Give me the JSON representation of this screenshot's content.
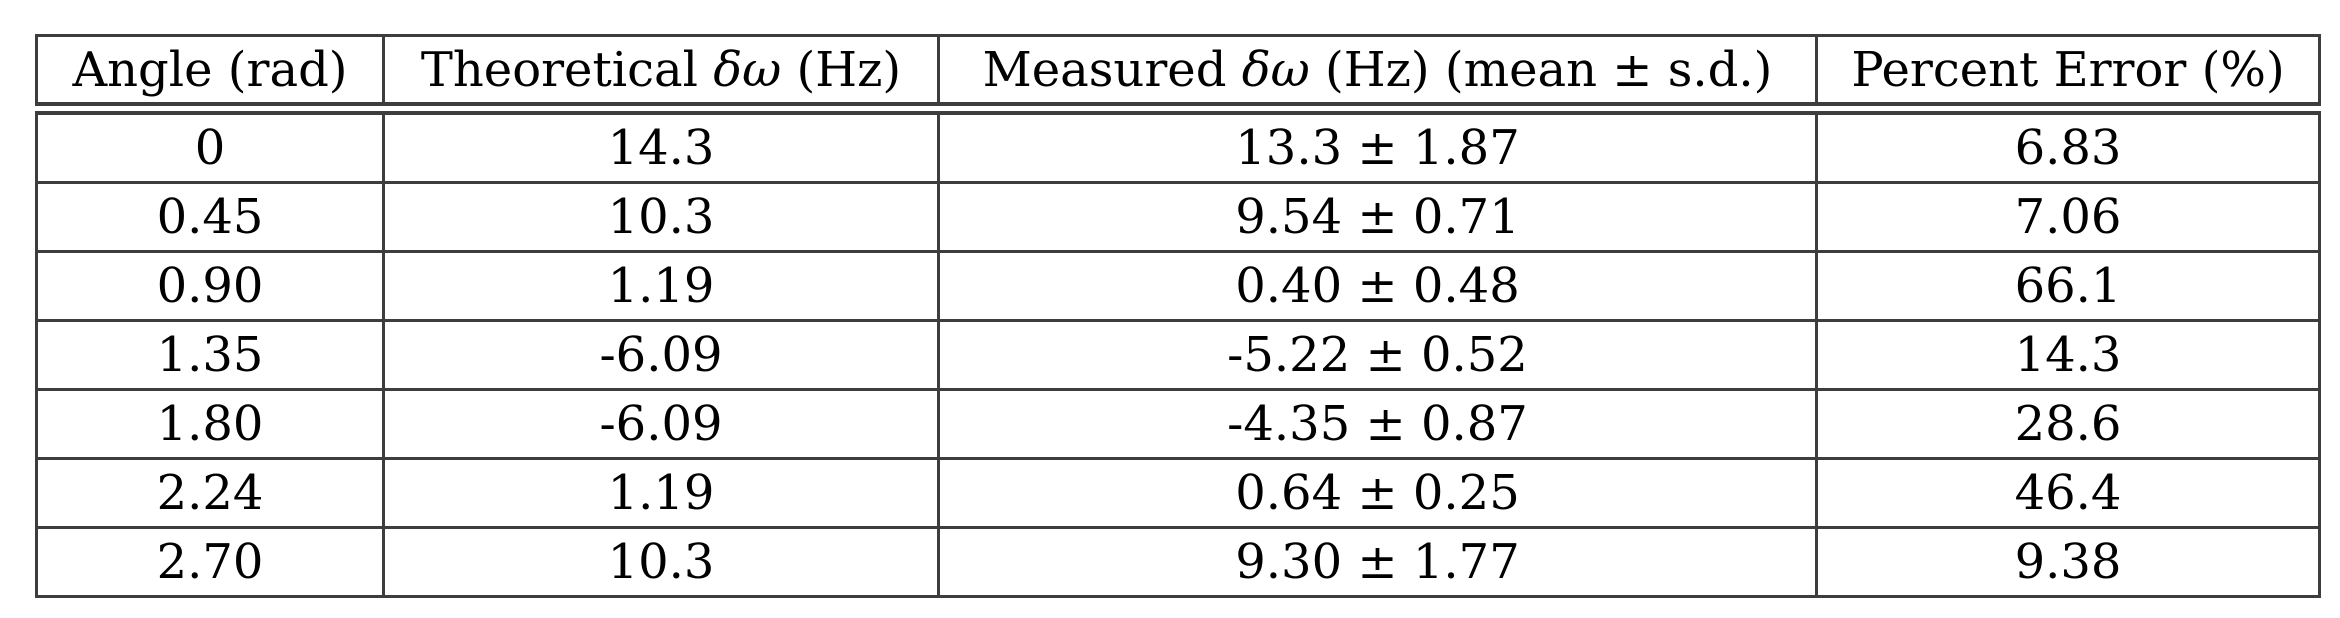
{
  "chart_data": {
    "type": "table",
    "title": "",
    "columns": [
      "Angle (rad)",
      "Theoretical δω (Hz)",
      "Measured δω (Hz) (mean ± s.d.)",
      "Percent Error (%)"
    ],
    "rows": [
      [
        "0",
        "14.3",
        "13.3 ± 1.87",
        "6.83"
      ],
      [
        "0.45",
        "10.3",
        "9.54 ± 0.71",
        "7.06"
      ],
      [
        "0.90",
        "1.19",
        "0.40 ± 0.48",
        "66.1"
      ],
      [
        "1.35",
        "-6.09",
        "-5.22 ± 0.52",
        "14.3"
      ],
      [
        "1.80",
        "-6.09",
        "-4.35 ± 0.87",
        "28.6"
      ],
      [
        "2.24",
        "1.19",
        "0.64 ± 0.25",
        "46.4"
      ],
      [
        "2.70",
        "10.3",
        "9.30 ± 1.77",
        "9.38"
      ]
    ],
    "colors": {
      "border": "#3d3d3d",
      "text": "#000000",
      "background": "#ffffff"
    }
  }
}
